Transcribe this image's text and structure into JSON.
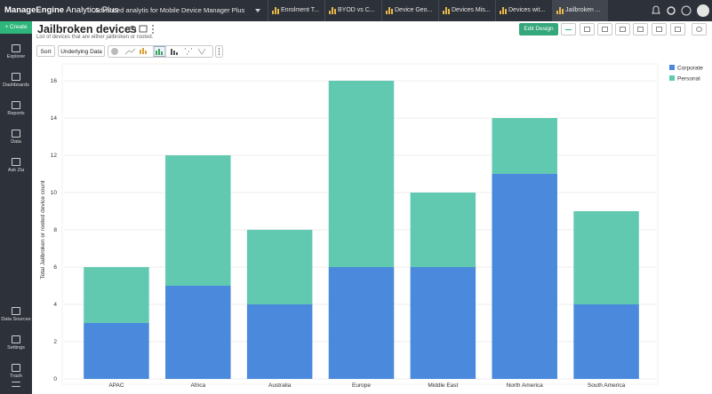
{
  "app": {
    "brand": "ManageEngine",
    "product": "Analytics Plus",
    "workspace": "Advanced analytis for Mobile Device Manager Plus",
    "tabs": [
      "Enrolment T...",
      "BYOD vs C...",
      "Device Geo...",
      "Devices Mis...",
      "Devices wit...",
      "Jailbroken ..."
    ],
    "create": "Create",
    "sidebar_top": [
      "Explorer",
      "Dashboards",
      "Reports",
      "Data",
      "Ask Zia"
    ],
    "sidebar_bottom": [
      "Data Sources",
      "Settings",
      "Trash"
    ]
  },
  "toolbar": {
    "sort": "Sort",
    "underlying_data": "Underlying Data",
    "edit_design": "Edit Design"
  },
  "chart_data": {
    "type": "bar",
    "stacked": true,
    "title": "Jailbroken devices",
    "subtitle": "List of devices that are either jailbroken or rooted.",
    "y_label": "Total Jailbroken or rooted device count",
    "categories": [
      "APAC",
      "Africa",
      "Australia",
      "Europe",
      "Middle East",
      "North America",
      "South America"
    ],
    "series": [
      {
        "name": "Corporate",
        "color": "#4a89dc",
        "values": [
          3,
          5,
          4,
          6,
          6,
          11,
          4
        ]
      },
      {
        "name": "Personal",
        "color": "#62c9b1",
        "values": [
          3,
          7,
          4,
          10,
          4,
          3,
          5
        ]
      }
    ],
    "ylim": [
      0,
      16
    ],
    "yticks": [
      0,
      2,
      4,
      6,
      8,
      10,
      12,
      14,
      16
    ],
    "grid": true,
    "legend": "top-right"
  }
}
